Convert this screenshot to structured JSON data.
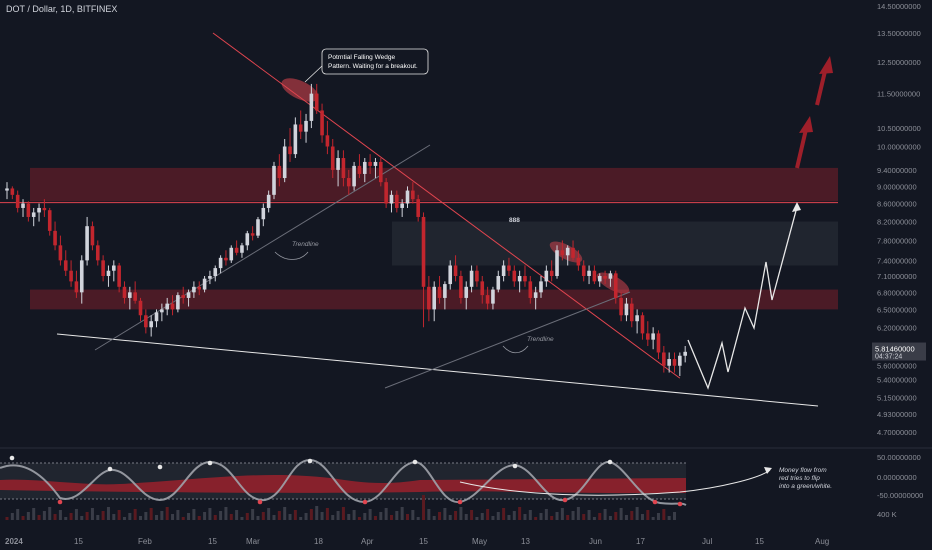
{
  "header": {
    "title": "DOT / Dollar, 1D, BITFINEX"
  },
  "colors": {
    "bg": "#131722",
    "bull": "#d1d4dc",
    "bear": "#c2262e",
    "zone": "#7a1f2a",
    "accent": "#e0454f",
    "line": "#e8e8e8",
    "axis_text": "#8c8f98"
  },
  "chart_data": {
    "type": "candlestick",
    "symbol": "DOT / Dollar",
    "interval": "1D",
    "exchange": "BITFINEX",
    "y_axis": {
      "scale": "log",
      "ticks": [
        "14.50000000",
        "13.50000000",
        "12.50000000",
        "11.50000000",
        "10.50000000",
        "10.00000000",
        "9.40000000",
        "9.00000000",
        "8.60000000",
        "8.20000000",
        "7.80000000",
        "7.40000000",
        "7.10000000",
        "6.80000000",
        "6.50000000",
        "6.20000000",
        "5.90000000",
        "5.60000000",
        "5.40000000",
        "5.15000000",
        "4.93000000",
        "4.70000000"
      ]
    },
    "x_axis": {
      "ticks": [
        "2024",
        "15",
        "Feb",
        "15",
        "Mar",
        "18",
        "Apr",
        "15",
        "May",
        "13",
        "Jun",
        "17",
        "Jul",
        "15",
        "Aug"
      ]
    },
    "last_price": "5.81460000",
    "countdown": "04:37:24",
    "candles": [
      [
        8.9,
        9.1,
        8.7,
        8.95
      ],
      [
        8.95,
        9.0,
        8.7,
        8.8
      ],
      [
        8.8,
        8.9,
        8.4,
        8.5
      ],
      [
        8.5,
        8.7,
        8.3,
        8.6
      ],
      [
        8.6,
        8.65,
        8.2,
        8.3
      ],
      [
        8.3,
        8.5,
        8.1,
        8.4
      ],
      [
        8.4,
        8.6,
        8.2,
        8.5
      ],
      [
        8.5,
        8.7,
        8.3,
        8.45
      ],
      [
        8.45,
        8.5,
        7.9,
        8.0
      ],
      [
        8.0,
        8.2,
        7.6,
        7.7
      ],
      [
        7.7,
        7.9,
        7.3,
        7.4
      ],
      [
        7.4,
        7.6,
        7.1,
        7.2
      ],
      [
        7.2,
        7.4,
        6.9,
        7.0
      ],
      [
        7.0,
        7.2,
        6.7,
        6.8
      ],
      [
        6.8,
        7.5,
        6.6,
        7.4
      ],
      [
        7.4,
        8.3,
        7.3,
        8.1
      ],
      [
        8.1,
        8.2,
        7.6,
        7.7
      ],
      [
        7.7,
        7.8,
        7.3,
        7.4
      ],
      [
        7.4,
        7.5,
        7.0,
        7.1
      ],
      [
        7.1,
        7.3,
        6.9,
        7.2
      ],
      [
        7.2,
        7.4,
        7.0,
        7.3
      ],
      [
        7.3,
        7.35,
        6.8,
        6.9
      ],
      [
        6.9,
        7.0,
        6.6,
        6.7
      ],
      [
        6.7,
        6.9,
        6.5,
        6.8
      ],
      [
        6.8,
        7.0,
        6.6,
        6.65
      ],
      [
        6.65,
        6.7,
        6.3,
        6.4
      ],
      [
        6.4,
        6.5,
        6.1,
        6.2
      ],
      [
        6.2,
        6.4,
        6.05,
        6.3
      ],
      [
        6.3,
        6.5,
        6.2,
        6.45
      ],
      [
        6.45,
        6.6,
        6.3,
        6.5
      ],
      [
        6.5,
        6.7,
        6.4,
        6.6
      ],
      [
        6.6,
        6.75,
        6.4,
        6.5
      ],
      [
        6.5,
        6.8,
        6.45,
        6.75
      ],
      [
        6.75,
        6.9,
        6.6,
        6.7
      ],
      [
        6.7,
        6.85,
        6.55,
        6.8
      ],
      [
        6.8,
        7.0,
        6.7,
        6.9
      ],
      [
        6.9,
        7.0,
        6.75,
        6.85
      ],
      [
        6.85,
        7.1,
        6.8,
        7.05
      ],
      [
        7.05,
        7.2,
        6.95,
        7.1
      ],
      [
        7.1,
        7.3,
        7.0,
        7.25
      ],
      [
        7.25,
        7.5,
        7.15,
        7.45
      ],
      [
        7.45,
        7.6,
        7.3,
        7.4
      ],
      [
        7.4,
        7.7,
        7.35,
        7.65
      ],
      [
        7.65,
        7.8,
        7.5,
        7.55
      ],
      [
        7.55,
        7.75,
        7.45,
        7.7
      ],
      [
        7.7,
        8.0,
        7.6,
        7.95
      ],
      [
        7.95,
        8.1,
        7.8,
        7.9
      ],
      [
        7.9,
        8.3,
        7.85,
        8.25
      ],
      [
        8.25,
        8.6,
        8.1,
        8.5
      ],
      [
        8.5,
        8.9,
        8.4,
        8.8
      ],
      [
        8.8,
        9.6,
        8.7,
        9.5
      ],
      [
        9.5,
        9.8,
        9.0,
        9.2
      ],
      [
        9.2,
        10.2,
        9.1,
        10.0
      ],
      [
        10.0,
        10.5,
        9.6,
        9.8
      ],
      [
        9.8,
        10.8,
        9.7,
        10.6
      ],
      [
        10.6,
        11.0,
        10.2,
        10.4
      ],
      [
        10.4,
        10.9,
        10.1,
        10.7
      ],
      [
        10.7,
        11.8,
        10.5,
        11.5
      ],
      [
        11.5,
        11.8,
        10.9,
        11.0
      ],
      [
        11.0,
        11.2,
        10.1,
        10.3
      ],
      [
        10.3,
        10.7,
        9.8,
        10.0
      ],
      [
        10.0,
        10.2,
        9.2,
        9.4
      ],
      [
        9.4,
        9.9,
        9.0,
        9.7
      ],
      [
        9.7,
        9.9,
        9.0,
        9.2
      ],
      [
        9.2,
        9.4,
        8.8,
        9.0
      ],
      [
        9.0,
        9.6,
        8.9,
        9.5
      ],
      [
        9.5,
        9.8,
        9.2,
        9.3
      ],
      [
        9.3,
        9.7,
        9.1,
        9.6
      ],
      [
        9.6,
        9.8,
        9.3,
        9.5
      ],
      [
        9.5,
        9.7,
        9.2,
        9.6
      ],
      [
        9.6,
        9.7,
        9.0,
        9.1
      ],
      [
        9.1,
        9.2,
        8.5,
        8.6
      ],
      [
        8.6,
        8.9,
        8.4,
        8.8
      ],
      [
        8.8,
        8.9,
        8.4,
        8.5
      ],
      [
        8.5,
        8.7,
        8.3,
        8.6
      ],
      [
        8.6,
        9.0,
        8.5,
        8.9
      ],
      [
        8.9,
        9.1,
        8.6,
        8.7
      ],
      [
        8.7,
        8.8,
        8.2,
        8.3
      ],
      [
        8.3,
        8.4,
        6.2,
        6.9
      ],
      [
        6.9,
        7.1,
        6.3,
        6.5
      ],
      [
        6.5,
        7.0,
        6.3,
        6.9
      ],
      [
        6.9,
        7.1,
        6.6,
        6.7
      ],
      [
        6.7,
        7.0,
        6.5,
        6.95
      ],
      [
        6.95,
        7.4,
        6.85,
        7.3
      ],
      [
        7.3,
        7.5,
        7.0,
        7.1
      ],
      [
        7.1,
        7.2,
        6.6,
        6.7
      ],
      [
        6.7,
        7.0,
        6.5,
        6.9
      ],
      [
        6.9,
        7.3,
        6.8,
        7.2
      ],
      [
        7.2,
        7.3,
        6.9,
        7.0
      ],
      [
        7.0,
        7.1,
        6.6,
        6.75
      ],
      [
        6.75,
        6.9,
        6.5,
        6.6
      ],
      [
        6.6,
        6.9,
        6.5,
        6.85
      ],
      [
        6.85,
        7.2,
        6.8,
        7.1
      ],
      [
        7.1,
        7.4,
        7.0,
        7.3
      ],
      [
        7.3,
        7.45,
        7.1,
        7.2
      ],
      [
        7.2,
        7.3,
        6.9,
        7.0
      ],
      [
        7.0,
        7.2,
        6.8,
        7.1
      ],
      [
        7.1,
        7.3,
        6.9,
        7.0
      ],
      [
        7.0,
        7.1,
        6.6,
        6.7
      ],
      [
        6.7,
        6.9,
        6.5,
        6.8
      ],
      [
        6.8,
        7.1,
        6.7,
        7.0
      ],
      [
        7.0,
        7.3,
        6.9,
        7.2
      ],
      [
        7.2,
        7.4,
        7.0,
        7.1
      ],
      [
        7.1,
        7.7,
        7.05,
        7.6
      ],
      [
        7.6,
        7.8,
        7.4,
        7.5
      ],
      [
        7.5,
        7.7,
        7.3,
        7.65
      ],
      [
        7.65,
        7.8,
        7.4,
        7.45
      ],
      [
        7.45,
        7.6,
        7.2,
        7.3
      ],
      [
        7.3,
        7.4,
        7.0,
        7.1
      ],
      [
        7.1,
        7.3,
        6.95,
        7.2
      ],
      [
        7.2,
        7.3,
        6.95,
        7.0
      ],
      [
        7.0,
        7.15,
        6.9,
        7.1
      ],
      [
        7.1,
        7.2,
        6.95,
        7.05
      ],
      [
        7.05,
        7.2,
        6.9,
        7.15
      ],
      [
        7.15,
        7.2,
        6.6,
        6.7
      ],
      [
        6.7,
        6.8,
        6.3,
        6.4
      ],
      [
        6.4,
        6.7,
        6.3,
        6.6
      ],
      [
        6.6,
        6.7,
        6.2,
        6.3
      ],
      [
        6.3,
        6.5,
        6.1,
        6.4
      ],
      [
        6.4,
        6.45,
        6.0,
        6.1
      ],
      [
        6.1,
        6.3,
        5.9,
        6.0
      ],
      [
        6.0,
        6.2,
        5.85,
        6.1
      ],
      [
        6.1,
        6.15,
        5.7,
        5.8
      ],
      [
        5.8,
        5.9,
        5.5,
        5.6
      ],
      [
        5.6,
        5.8,
        5.5,
        5.7
      ],
      [
        5.7,
        5.8,
        5.5,
        5.6
      ],
      [
        5.6,
        5.8,
        5.45,
        5.75
      ],
      [
        5.75,
        5.9,
        5.65,
        5.81
      ]
    ],
    "series_lines": {
      "falling_resistance": [
        [
          8.6,
          11.9
        ],
        [
          58.5,
          11.7
        ],
        [
          126,
          5.55
        ]
      ],
      "support": [
        [
          -2,
          6.2
        ],
        [
          126,
          5.43
        ]
      ]
    },
    "zones": [
      {
        "top": 9.45,
        "bottom": 8.65,
        "color": "red"
      },
      {
        "top": 8.2,
        "bottom": 7.3,
        "color": "gray"
      },
      {
        "top": 6.85,
        "bottom": 6.5,
        "color": "red"
      }
    ],
    "horizontal_line": 8.62,
    "oscillator": {
      "ticks": [
        "50.00000000",
        "0.00000000",
        "-50.00000000"
      ],
      "volume_label": "400 K"
    },
    "annotations": {
      "callout": [
        "Potrntial Falling Wedge",
        "Pattern. Waiting for a breakout."
      ],
      "trendline_1": "Trendline",
      "trendline_2": "Trendline",
      "money_flow": [
        "Money flow from",
        "red tries to flip",
        "into a green/white."
      ],
      "cross_label": "888"
    }
  }
}
